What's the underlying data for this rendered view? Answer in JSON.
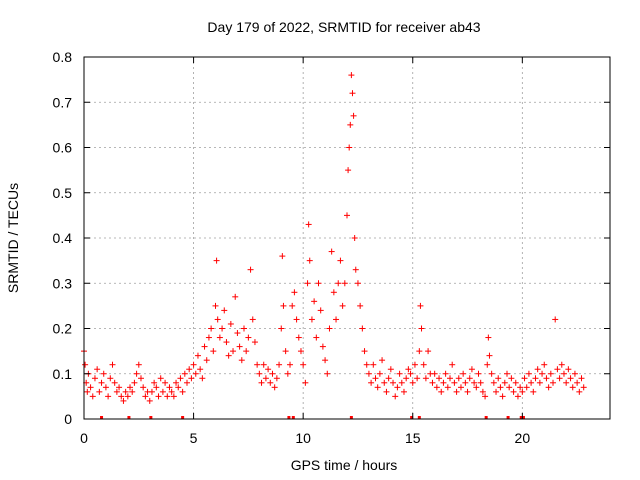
{
  "chart_data": {
    "type": "scatter",
    "title": "Day 179 of 2022, SRMTID for receiver ab43",
    "xlabel": "GPS time / hours",
    "ylabel": "SRMTID / TECUs",
    "xlim": [
      0,
      24
    ],
    "ylim": [
      0,
      0.8
    ],
    "xticks": [
      0,
      5,
      10,
      15,
      20
    ],
    "yticks": [
      0,
      0.1,
      0.2,
      0.3,
      0.4,
      0.5,
      0.6,
      0.7,
      0.8
    ],
    "xtick_labels": [
      "0",
      "5",
      "10",
      "15",
      "20"
    ],
    "ytick_labels": [
      "0",
      "0.1",
      "0.2",
      "0.3",
      "0.4",
      "0.5",
      "0.6",
      "0.7",
      "0.8"
    ],
    "grid": true,
    "marker": "+",
    "series_color": "#ff0000",
    "series": [
      {
        "name": "SRMTID",
        "points": [
          [
            0.0,
            0.15
          ],
          [
            0.05,
            0.12
          ],
          [
            0.1,
            0.08
          ],
          [
            0.15,
            0.06
          ],
          [
            0.2,
            0.1
          ],
          [
            0.3,
            0.07
          ],
          [
            0.4,
            0.05
          ],
          [
            0.5,
            0.09
          ],
          [
            0.6,
            0.11
          ],
          [
            0.7,
            0.06
          ],
          [
            0.8,
            0.08
          ],
          [
            0.9,
            0.1
          ],
          [
            1.0,
            0.07
          ],
          [
            1.1,
            0.05
          ],
          [
            1.2,
            0.09
          ],
          [
            1.3,
            0.12
          ],
          [
            1.4,
            0.08
          ],
          [
            1.5,
            0.06
          ],
          [
            1.6,
            0.07
          ],
          [
            1.7,
            0.05
          ],
          [
            1.8,
            0.04
          ],
          [
            1.9,
            0.06
          ],
          [
            2.0,
            0.05
          ],
          [
            2.1,
            0.07
          ],
          [
            2.2,
            0.06
          ],
          [
            2.3,
            0.08
          ],
          [
            2.4,
            0.1
          ],
          [
            2.5,
            0.12
          ],
          [
            2.6,
            0.09
          ],
          [
            2.7,
            0.07
          ],
          [
            2.8,
            0.05
          ],
          [
            2.9,
            0.06
          ],
          [
            3.0,
            0.04
          ],
          [
            3.1,
            0.06
          ],
          [
            3.2,
            0.08
          ],
          [
            3.3,
            0.07
          ],
          [
            3.4,
            0.05
          ],
          [
            3.5,
            0.09
          ],
          [
            3.6,
            0.06
          ],
          [
            3.7,
            0.08
          ],
          [
            3.8,
            0.05
          ],
          [
            3.9,
            0.07
          ],
          [
            4.0,
            0.06
          ],
          [
            4.1,
            0.05
          ],
          [
            4.2,
            0.08
          ],
          [
            4.3,
            0.07
          ],
          [
            4.4,
            0.09
          ],
          [
            4.5,
            0.06
          ],
          [
            4.6,
            0.1
          ],
          [
            4.7,
            0.08
          ],
          [
            4.8,
            0.11
          ],
          [
            4.9,
            0.09
          ],
          [
            5.0,
            0.12
          ],
          [
            5.1,
            0.1
          ],
          [
            5.2,
            0.14
          ],
          [
            5.3,
            0.11
          ],
          [
            5.4,
            0.09
          ],
          [
            5.5,
            0.16
          ],
          [
            5.6,
            0.13
          ],
          [
            5.7,
            0.18
          ],
          [
            5.8,
            0.2
          ],
          [
            5.9,
            0.15
          ],
          [
            6.0,
            0.25
          ],
          [
            6.05,
            0.35
          ],
          [
            6.1,
            0.22
          ],
          [
            6.2,
            0.18
          ],
          [
            6.3,
            0.2
          ],
          [
            6.4,
            0.24
          ],
          [
            6.5,
            0.17
          ],
          [
            6.6,
            0.14
          ],
          [
            6.7,
            0.21
          ],
          [
            6.8,
            0.15
          ],
          [
            6.9,
            0.27
          ],
          [
            7.0,
            0.19
          ],
          [
            7.1,
            0.16
          ],
          [
            7.2,
            0.13
          ],
          [
            7.3,
            0.2
          ],
          [
            7.4,
            0.15
          ],
          [
            7.5,
            0.18
          ],
          [
            7.6,
            0.33
          ],
          [
            7.7,
            0.22
          ],
          [
            7.8,
            0.17
          ],
          [
            7.9,
            0.12
          ],
          [
            8.0,
            0.1
          ],
          [
            8.1,
            0.08
          ],
          [
            8.2,
            0.12
          ],
          [
            8.3,
            0.09
          ],
          [
            8.4,
            0.11
          ],
          [
            8.5,
            0.08
          ],
          [
            8.6,
            0.1
          ],
          [
            8.7,
            0.07
          ],
          [
            8.8,
            0.09
          ],
          [
            8.9,
            0.12
          ],
          [
            9.0,
            0.2
          ],
          [
            9.05,
            0.36
          ],
          [
            9.1,
            0.25
          ],
          [
            9.2,
            0.15
          ],
          [
            9.3,
            0.1
          ],
          [
            9.4,
            0.12
          ],
          [
            9.5,
            0.25
          ],
          [
            9.6,
            0.28
          ],
          [
            9.7,
            0.22
          ],
          [
            9.8,
            0.18
          ],
          [
            9.9,
            0.15
          ],
          [
            10.0,
            0.12
          ],
          [
            10.1,
            0.08
          ],
          [
            10.2,
            0.3
          ],
          [
            10.25,
            0.43
          ],
          [
            10.3,
            0.35
          ],
          [
            10.4,
            0.22
          ],
          [
            10.5,
            0.26
          ],
          [
            10.6,
            0.18
          ],
          [
            10.7,
            0.3
          ],
          [
            10.8,
            0.24
          ],
          [
            10.9,
            0.16
          ],
          [
            11.0,
            0.13
          ],
          [
            11.1,
            0.1
          ],
          [
            11.2,
            0.2
          ],
          [
            11.3,
            0.37
          ],
          [
            11.4,
            0.28
          ],
          [
            11.5,
            0.22
          ],
          [
            11.6,
            0.3
          ],
          [
            11.7,
            0.35
          ],
          [
            11.8,
            0.25
          ],
          [
            11.9,
            0.3
          ],
          [
            12.0,
            0.45
          ],
          [
            12.05,
            0.55
          ],
          [
            12.1,
            0.6
          ],
          [
            12.15,
            0.65
          ],
          [
            12.2,
            0.76
          ],
          [
            12.25,
            0.72
          ],
          [
            12.3,
            0.67
          ],
          [
            12.35,
            0.4
          ],
          [
            12.4,
            0.33
          ],
          [
            12.5,
            0.3
          ],
          [
            12.6,
            0.25
          ],
          [
            12.7,
            0.2
          ],
          [
            12.8,
            0.15
          ],
          [
            12.9,
            0.12
          ],
          [
            13.0,
            0.1
          ],
          [
            13.1,
            0.08
          ],
          [
            13.2,
            0.12
          ],
          [
            13.3,
            0.09
          ],
          [
            13.4,
            0.07
          ],
          [
            13.5,
            0.1
          ],
          [
            13.6,
            0.13
          ],
          [
            13.7,
            0.08
          ],
          [
            13.8,
            0.06
          ],
          [
            13.9,
            0.09
          ],
          [
            14.0,
            0.11
          ],
          [
            14.1,
            0.08
          ],
          [
            14.2,
            0.05
          ],
          [
            14.3,
            0.07
          ],
          [
            14.4,
            0.1
          ],
          [
            14.5,
            0.08
          ],
          [
            14.6,
            0.06
          ],
          [
            14.7,
            0.09
          ],
          [
            14.8,
            0.11
          ],
          [
            14.9,
            0.1
          ],
          [
            15.0,
            0.08
          ],
          [
            15.1,
            0.12
          ],
          [
            15.2,
            0.09
          ],
          [
            15.3,
            0.15
          ],
          [
            15.35,
            0.25
          ],
          [
            15.4,
            0.2
          ],
          [
            15.5,
            0.12
          ],
          [
            15.6,
            0.09
          ],
          [
            15.7,
            0.15
          ],
          [
            15.8,
            0.1
          ],
          [
            15.9,
            0.08
          ],
          [
            16.0,
            0.1
          ],
          [
            16.1,
            0.07
          ],
          [
            16.2,
            0.09
          ],
          [
            16.3,
            0.06
          ],
          [
            16.4,
            0.08
          ],
          [
            16.5,
            0.1
          ],
          [
            16.6,
            0.07
          ],
          [
            16.7,
            0.09
          ],
          [
            16.8,
            0.12
          ],
          [
            16.9,
            0.08
          ],
          [
            17.0,
            0.06
          ],
          [
            17.1,
            0.09
          ],
          [
            17.2,
            0.07
          ],
          [
            17.3,
            0.1
          ],
          [
            17.4,
            0.08
          ],
          [
            17.5,
            0.06
          ],
          [
            17.6,
            0.09
          ],
          [
            17.7,
            0.11
          ],
          [
            17.8,
            0.08
          ],
          [
            17.9,
            0.07
          ],
          [
            18.0,
            0.1
          ],
          [
            18.1,
            0.08
          ],
          [
            18.2,
            0.06
          ],
          [
            18.3,
            0.05
          ],
          [
            18.4,
            0.12
          ],
          [
            18.45,
            0.18
          ],
          [
            18.5,
            0.14
          ],
          [
            18.6,
            0.1
          ],
          [
            18.7,
            0.08
          ],
          [
            18.8,
            0.06
          ],
          [
            18.9,
            0.09
          ],
          [
            19.0,
            0.07
          ],
          [
            19.1,
            0.05
          ],
          [
            19.2,
            0.08
          ],
          [
            19.3,
            0.1
          ],
          [
            19.4,
            0.07
          ],
          [
            19.5,
            0.09
          ],
          [
            19.6,
            0.06
          ],
          [
            19.7,
            0.08
          ],
          [
            19.8,
            0.05
          ],
          [
            19.9,
            0.07
          ],
          [
            20.0,
            0.06
          ],
          [
            20.1,
            0.09
          ],
          [
            20.2,
            0.07
          ],
          [
            20.3,
            0.1
          ],
          [
            20.4,
            0.08
          ],
          [
            20.5,
            0.06
          ],
          [
            20.6,
            0.09
          ],
          [
            20.7,
            0.11
          ],
          [
            20.8,
            0.08
          ],
          [
            20.9,
            0.1
          ],
          [
            21.0,
            0.12
          ],
          [
            21.1,
            0.09
          ],
          [
            21.2,
            0.07
          ],
          [
            21.3,
            0.1
          ],
          [
            21.4,
            0.08
          ],
          [
            21.5,
            0.22
          ],
          [
            21.6,
            0.11
          ],
          [
            21.7,
            0.09
          ],
          [
            21.8,
            0.12
          ],
          [
            21.9,
            0.1
          ],
          [
            22.0,
            0.08
          ],
          [
            22.1,
            0.11
          ],
          [
            22.2,
            0.09
          ],
          [
            22.3,
            0.07
          ],
          [
            22.4,
            0.1
          ],
          [
            22.5,
            0.08
          ],
          [
            22.6,
            0.06
          ],
          [
            22.7,
            0.09
          ],
          [
            22.8,
            0.07
          ]
        ]
      }
    ],
    "gap_markers_x": [
      0.8,
      2.05,
      3.05,
      4.5,
      9.35,
      9.55,
      12.2,
      14.95,
      15.3,
      18.35,
      19.35,
      19.95,
      20.05
    ]
  }
}
